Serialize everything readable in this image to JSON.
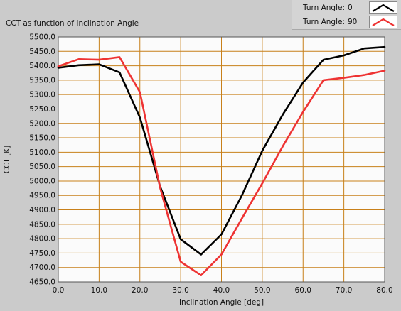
{
  "chart_data": {
    "type": "line",
    "title": "CCT as function of Inclination Angle",
    "xlabel": "Inclination Angle [deg]",
    "ylabel": "CCT [K]",
    "xlim": [
      0,
      80
    ],
    "ylim": [
      4650,
      5500
    ],
    "xticks": [
      0,
      10,
      20,
      30,
      40,
      50,
      60,
      70,
      80
    ],
    "xtick_labels": [
      "0.0",
      "10.0",
      "20.0",
      "30.0",
      "40.0",
      "50.0",
      "60.0",
      "70.0",
      "80.0"
    ],
    "yticks": [
      4650,
      4700,
      4750,
      4800,
      4850,
      4900,
      4950,
      5000,
      5050,
      5100,
      5150,
      5200,
      5250,
      5300,
      5350,
      5400,
      5450,
      5500
    ],
    "ytick_labels": [
      "4650.0",
      "4700.0",
      "4750.0",
      "4800.0",
      "4850.0",
      "4900.0",
      "4950.0",
      "5000.0",
      "5050.0",
      "5100.0",
      "5150.0",
      "5200.0",
      "5250.0",
      "5300.0",
      "5350.0",
      "5400.0",
      "5450.0",
      "5500.0"
    ],
    "grid": true,
    "legend_position": "top-right",
    "series": [
      {
        "label_name": "Turn Angle:",
        "label_value": "0",
        "color": "#000000",
        "x": [
          0,
          5,
          10,
          15,
          20,
          25,
          30,
          35,
          40,
          45,
          50,
          55,
          60,
          65,
          70,
          75,
          80
        ],
        "y": [
          5393,
          5402,
          5405,
          5377,
          5220,
          4980,
          4798,
          4745,
          4815,
          4950,
          5105,
          5230,
          5342,
          5421,
          5436,
          5460,
          5465
        ]
      },
      {
        "label_name": "Turn Angle:",
        "label_value": "90",
        "color": "#ee3333",
        "x": [
          0,
          5,
          10,
          15,
          20,
          25,
          30,
          35,
          40,
          45,
          50,
          55,
          60,
          65,
          70,
          75,
          80
        ],
        "y": [
          5398,
          5423,
          5421,
          5430,
          5308,
          4975,
          4720,
          4673,
          4745,
          4870,
          4992,
          5120,
          5240,
          5350,
          5358,
          5368,
          5383
        ]
      }
    ]
  }
}
